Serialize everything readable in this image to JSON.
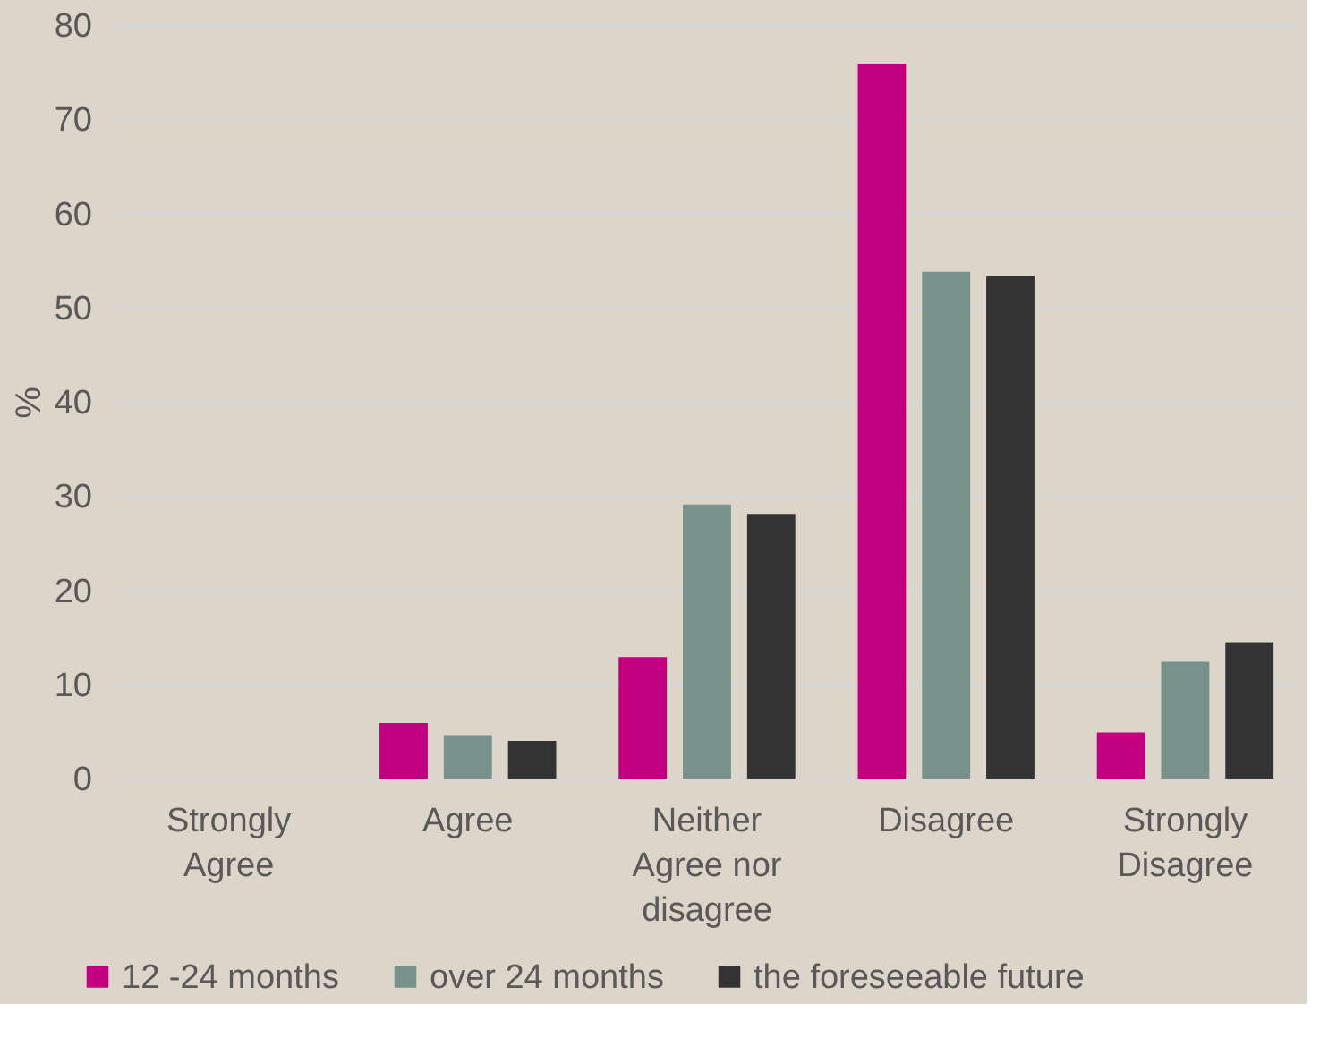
{
  "chart_data": {
    "type": "bar",
    "ylabel": "%",
    "categories": [
      "Strongly Agree",
      "Agree",
      "Neither Agree nor disagree",
      "Disagree",
      "Strongly Disagree"
    ],
    "series": [
      {
        "name": "12 -24 months",
        "color": "#c0007f",
        "values": [
          0,
          5.9,
          12.9,
          75.9,
          4.9
        ]
      },
      {
        "name": "over 24 months",
        "color": "#79918b",
        "values": [
          0,
          4.6,
          29.1,
          53.8,
          12.4
        ]
      },
      {
        "name": "the foreseeable future",
        "color": "#333333",
        "values": [
          0,
          4.0,
          28.1,
          53.4,
          14.4
        ]
      }
    ],
    "ylim": [
      0,
      80
    ],
    "yticks": [
      0,
      10,
      20,
      30,
      40,
      50,
      60,
      70,
      80
    ],
    "grid": "y",
    "legend": "bottom left"
  }
}
